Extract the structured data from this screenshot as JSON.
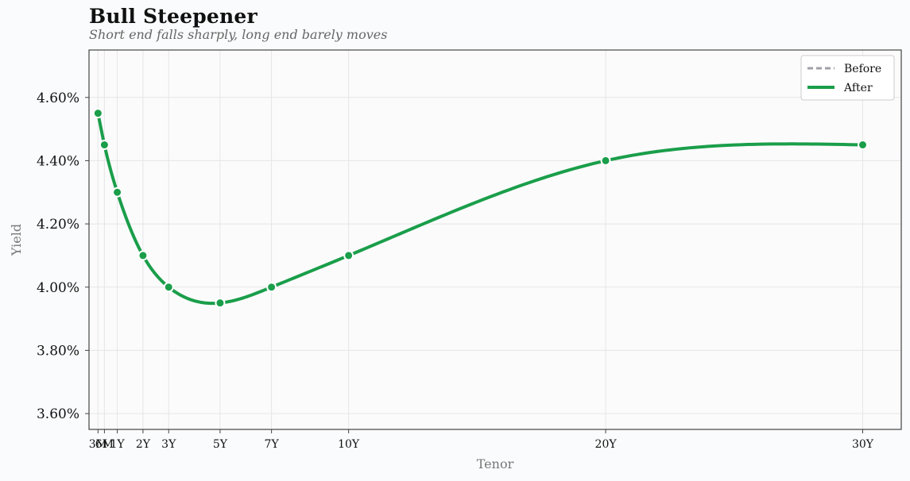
{
  "chart_data": {
    "type": "line",
    "title": "Bull Steepener",
    "subtitle": "Short end falls sharply, long end barely moves",
    "xlabel": "Tenor",
    "ylabel": "Yield",
    "x_tick_labels": [
      "3M",
      "6M",
      "1Y",
      "2Y",
      "3Y",
      "5Y",
      "7Y",
      "10Y",
      "20Y",
      "30Y"
    ],
    "x_years": [
      0.25,
      0.5,
      1,
      2,
      3,
      5,
      7,
      10,
      20,
      30
    ],
    "xlim": [
      -0.1,
      31.5
    ],
    "ylim": [
      3.55,
      4.75
    ],
    "y_ticks": [
      3.6,
      3.8,
      4.0,
      4.2,
      4.4,
      4.6
    ],
    "y_tick_labels": [
      "3.60%",
      "3.80%",
      "4.00%",
      "4.20%",
      "4.40%",
      "4.60%"
    ],
    "grid": true,
    "legend_position": "top-right",
    "series": [
      {
        "name": "Before",
        "style": "dashed",
        "color": "#a0a0a8",
        "values": []
      },
      {
        "name": "After",
        "style": "solid",
        "color": "#1a9e4a",
        "values": [
          4.55,
          4.45,
          4.3,
          4.1,
          4.0,
          3.95,
          4.0,
          4.1,
          4.4,
          4.45
        ]
      }
    ]
  },
  "colors": {
    "background": "#fafbfc",
    "grid": "#e6e6e6",
    "frame": "#444444",
    "after_line": "#1a9e4a",
    "before_line": "#a0a0a8"
  }
}
